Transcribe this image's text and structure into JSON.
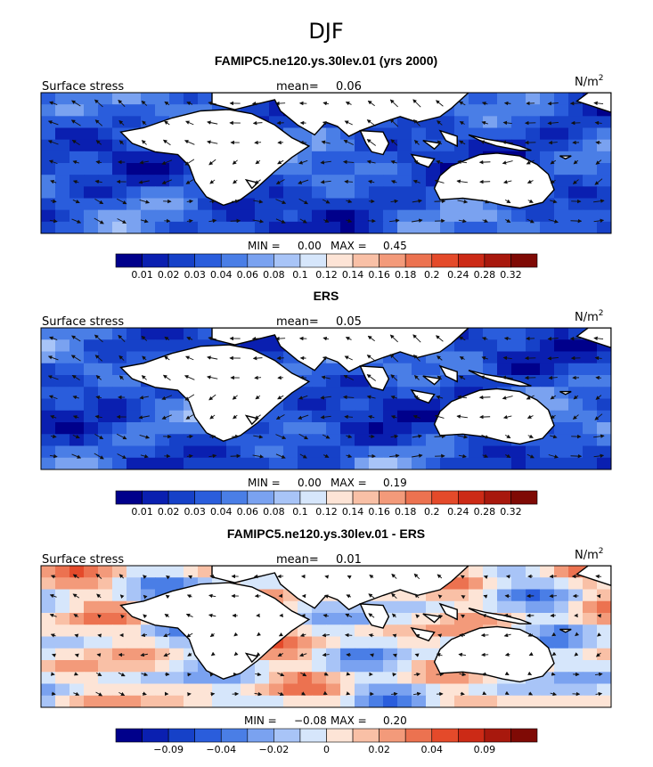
{
  "figure": {
    "season": "DJF",
    "colors": {
      "land": "#ffffff",
      "coast": "#000000",
      "arrow": "#111111"
    }
  },
  "chart_data": [
    {
      "type": "heatmap",
      "title": "FAMIPC5.ne120.ys.30lev.01 (yrs 2000)",
      "field_label": "Surface stress",
      "mean_label": "mean=",
      "mean_value": "0.06",
      "units": "N/m",
      "units_sup": "2",
      "min_label": "MIN =",
      "min_value": "0.00",
      "max_label": "MAX =",
      "max_value": "0.45",
      "colorbar": {
        "colors": [
          "#00008b",
          "#0a1fb0",
          "#1641c8",
          "#2a5ddc",
          "#4a7ee6",
          "#7aa2f0",
          "#a8c4f7",
          "#d6e6fb",
          "#fde4d6",
          "#f9c0a6",
          "#f39a7a",
          "#ec7250",
          "#e44a2a",
          "#cc2a16",
          "#a8180d",
          "#7f0a05"
        ],
        "tick_labels": [
          "0.01",
          "0.02",
          "0.03",
          "0.04",
          "0.06",
          "0.08",
          "0.1",
          "0.12",
          "0.14",
          "0.16",
          "0.18",
          "0.2",
          "0.24",
          "0.28",
          "0.32"
        ]
      }
    },
    {
      "type": "heatmap",
      "title": "ERS",
      "field_label": "Surface stress",
      "mean_label": "mean=",
      "mean_value": "0.05",
      "units": "N/m",
      "units_sup": "2",
      "min_label": "MIN =",
      "min_value": "0.00",
      "max_label": "MAX =",
      "max_value": "0.19",
      "colorbar": {
        "colors": [
          "#00008b",
          "#0a1fb0",
          "#1641c8",
          "#2a5ddc",
          "#4a7ee6",
          "#7aa2f0",
          "#a8c4f7",
          "#d6e6fb",
          "#fde4d6",
          "#f9c0a6",
          "#f39a7a",
          "#ec7250",
          "#e44a2a",
          "#cc2a16",
          "#a8180d",
          "#7f0a05"
        ],
        "tick_labels": [
          "0.01",
          "0.02",
          "0.03",
          "0.04",
          "0.06",
          "0.08",
          "0.1",
          "0.12",
          "0.14",
          "0.16",
          "0.18",
          "0.2",
          "0.24",
          "0.28",
          "0.32"
        ]
      }
    },
    {
      "type": "heatmap",
      "title": "FAMIPC5.ne120.ys.30lev.01 - ERS",
      "field_label": "Surface stress",
      "mean_label": "mean=",
      "mean_value": "0.01",
      "units": "N/m",
      "units_sup": "2",
      "min_label": "MIN =",
      "min_value": "−0.08",
      "max_label": "MAX =",
      "max_value": "0.20",
      "colorbar": {
        "colors": [
          "#00008b",
          "#0a1fb0",
          "#1641c8",
          "#2a5ddc",
          "#4a7ee6",
          "#7aa2f0",
          "#a8c4f7",
          "#d6e6fb",
          "#fde4d6",
          "#f9c0a6",
          "#f39a7a",
          "#ec7250",
          "#e44a2a",
          "#cc2a16",
          "#a8180d",
          "#7f0a05"
        ],
        "tick_labels": [
          "",
          "−0.09",
          "",
          "−0.04",
          "",
          "−0.02",
          "",
          "0",
          "",
          "0.02",
          "",
          "0.04",
          "",
          "0.09",
          ""
        ]
      }
    }
  ]
}
